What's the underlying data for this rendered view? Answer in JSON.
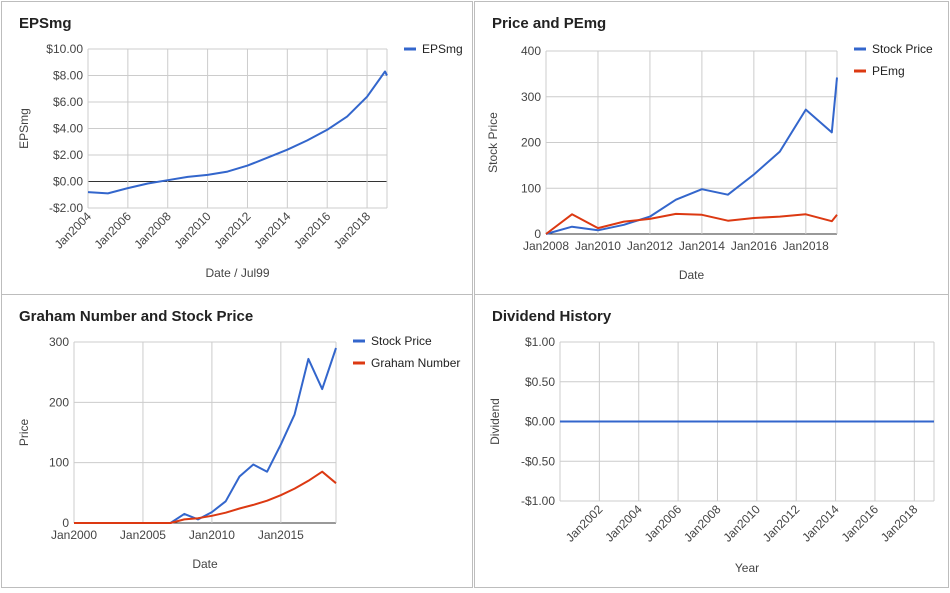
{
  "charts": {
    "eps": {
      "title": "EPSmg",
      "chart_data": {
        "type": "line",
        "xlabel": "Date / Jul99",
        "ylabel": "EPSmg",
        "xlim": [
          2004.0,
          2019.0
        ],
        "ylim": [
          -2,
          10
        ],
        "yticks": [
          -2,
          0,
          2,
          4,
          6,
          8,
          10
        ],
        "ytick_labels": [
          "-$2.00",
          "$0.00",
          "$2.00",
          "$4.00",
          "$6.00",
          "$8.00",
          "$10.00"
        ],
        "xticks": [
          2004,
          2006,
          2008,
          2010,
          2012,
          2014,
          2016,
          2018
        ],
        "xtick_labels": [
          "Jan2004",
          "Jan2006",
          "Jan2008",
          "Jan2010",
          "Jan2012",
          "Jan2014",
          "Jan2016",
          "Jan2018"
        ],
        "legend_position": "top-right",
        "grid": true,
        "series": [
          {
            "name": "EPSmg",
            "color": "#3366cc",
            "x": [
              2004.0,
              2005.0,
              2006.0,
              2007.0,
              2008.0,
              2009.0,
              2010.0,
              2011.0,
              2012.0,
              2013.0,
              2014.0,
              2015.0,
              2016.0,
              2017.0,
              2018.0,
              2018.9,
              2019.0
            ],
            "y": [
              -0.8,
              -0.9,
              -0.5,
              -0.15,
              0.1,
              0.35,
              0.5,
              0.75,
              1.2,
              1.8,
              2.4,
              3.1,
              3.9,
              4.9,
              6.4,
              8.3,
              8.0
            ]
          }
        ]
      }
    },
    "price": {
      "title": "Price and PEmg",
      "chart_data": {
        "type": "line",
        "xlabel": "Date",
        "ylabel": "Stock Price",
        "xlim": [
          2008.0,
          2019.2
        ],
        "ylim": [
          0,
          400
        ],
        "yticks": [
          0,
          100,
          200,
          300,
          400
        ],
        "ytick_labels": [
          "0",
          "100",
          "200",
          "300",
          "400"
        ],
        "xticks": [
          2008,
          2010,
          2012,
          2014,
          2016,
          2018
        ],
        "xtick_labels": [
          "Jan2008",
          "Jan2010",
          "Jan2012",
          "Jan2014",
          "Jan2016",
          "Jan2018"
        ],
        "legend_position": "top-right",
        "grid": true,
        "series": [
          {
            "name": "Stock Price",
            "color": "#3366cc",
            "x": [
              2008.0,
              2009.0,
              2010.0,
              2011.0,
              2012.0,
              2013.0,
              2014.0,
              2015.0,
              2016.0,
              2017.0,
              2018.0,
              2019.0,
              2019.2
            ],
            "y": [
              0,
              16,
              8,
              20,
              38,
              75,
              98,
              86,
              130,
              180,
              272,
              222,
              342
            ]
          },
          {
            "name": "PEmg",
            "color": "#dc3912",
            "x": [
              2008.0,
              2009.0,
              2010.0,
              2011.0,
              2012.0,
              2013.0,
              2014.0,
              2015.0,
              2016.0,
              2017.0,
              2018.0,
              2019.0,
              2019.2
            ],
            "y": [
              0,
              43,
              13,
              27,
              33,
              44,
              42,
              29,
              35,
              38,
              43,
              28,
              42
            ]
          }
        ]
      }
    },
    "graham": {
      "title": "Graham Number and Stock Price",
      "chart_data": {
        "type": "line",
        "xlabel": "Date",
        "ylabel": "Price",
        "xlim": [
          2000.0,
          2019.0
        ],
        "ylim": [
          0,
          300
        ],
        "yticks": [
          0,
          100,
          200,
          300
        ],
        "ytick_labels": [
          "0",
          "100",
          "200",
          "300"
        ],
        "xticks": [
          2000,
          2005,
          2010,
          2015
        ],
        "xtick_labels": [
          "Jan2000",
          "Jan2005",
          "Jan2010",
          "Jan2015"
        ],
        "legend_position": "top-right",
        "grid": true,
        "series": [
          {
            "name": "Stock Price",
            "color": "#3366cc",
            "x": [
              2000.0,
              2007.0,
              2008.0,
              2009.0,
              2010.0,
              2011.0,
              2012.0,
              2013.0,
              2014.0,
              2015.0,
              2016.0,
              2017.0,
              2018.0,
              2019.0
            ],
            "y": [
              0,
              0,
              15,
              6,
              18,
              36,
              77,
              97,
              85,
              130,
              180,
              272,
              222,
              290
            ]
          },
          {
            "name": "Graham Number",
            "color": "#dc3912",
            "x": [
              2000.0,
              2007.0,
              2008.0,
              2009.0,
              2010.0,
              2011.0,
              2012.0,
              2013.0,
              2014.0,
              2015.0,
              2016.0,
              2017.0,
              2018.0,
              2019.0
            ],
            "y": [
              0,
              0,
              6,
              8,
              12,
              17,
              24,
              30,
              37,
              46,
              57,
              70,
              85,
              66
            ]
          }
        ]
      }
    },
    "dividend": {
      "title": "Dividend History",
      "chart_data": {
        "type": "line",
        "xlabel": "Year",
        "ylabel": "Dividend",
        "xlim": [
          2000.0,
          2019.0
        ],
        "ylim": [
          -1,
          1
        ],
        "yticks": [
          -1,
          -0.5,
          0,
          0.5,
          1
        ],
        "ytick_labels": [
          "-$1.00",
          "-$0.50",
          "$0.00",
          "$0.50",
          "$1.00"
        ],
        "xticks": [
          2002,
          2004,
          2006,
          2008,
          2010,
          2012,
          2014,
          2016,
          2018
        ],
        "xtick_labels": [
          "Jan2002",
          "Jan2004",
          "Jan2006",
          "Jan2008",
          "Jan2010",
          "Jan2012",
          "Jan2014",
          "Jan2016",
          "Jan2018"
        ],
        "legend_position": "none",
        "grid": true,
        "series": [
          {
            "color": "#3366cc",
            "x": [
              2000.0,
              2019.0
            ],
            "y": [
              0,
              0
            ]
          }
        ]
      }
    }
  }
}
